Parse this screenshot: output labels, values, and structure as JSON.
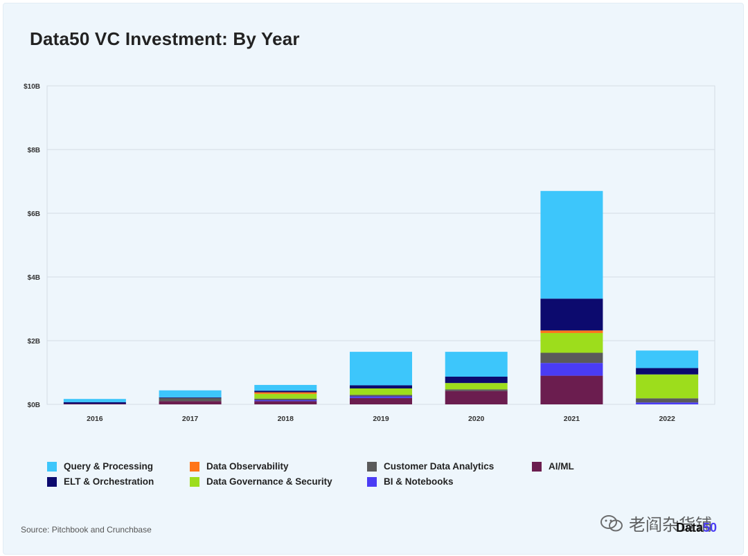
{
  "title": "Data50 VC Investment: By Year",
  "source": "Source: Pitchbook and Crunchbase",
  "watermark": "老阎杂货铺",
  "logo": {
    "text": "Data",
    "accent": "50"
  },
  "chart_data": {
    "type": "bar",
    "stacked": true,
    "title": "Data50 VC Investment: By Year",
    "xlabel": "",
    "ylabel": "",
    "ylim": [
      0,
      10
    ],
    "yunit": "$B",
    "yticks": [
      "$0B",
      "$2B",
      "$4B",
      "$6B",
      "$8B",
      "$10B"
    ],
    "ytick_values": [
      0,
      2,
      4,
      6,
      8,
      10
    ],
    "grid": true,
    "legend_position": "bottom",
    "categories": [
      "2016",
      "2017",
      "2018",
      "2019",
      "2020",
      "2021",
      "2022"
    ],
    "series": [
      {
        "name": "AI/ML",
        "color": "#6b1d4f",
        "values": [
          0.02,
          0.1,
          0.1,
          0.2,
          0.42,
          0.9,
          0.0
        ]
      },
      {
        "name": "BI & Notebooks",
        "color": "#4a3cf5",
        "values": [
          0.0,
          0.0,
          0.03,
          0.05,
          0.0,
          0.4,
          0.06
        ]
      },
      {
        "name": "Customer Data Analytics",
        "color": "#5a5a5a",
        "values": [
          0.0,
          0.1,
          0.05,
          0.05,
          0.05,
          0.32,
          0.13
        ]
      },
      {
        "name": "Data Governance & Security",
        "color": "#9ddd1c",
        "values": [
          0.0,
          0.0,
          0.15,
          0.2,
          0.2,
          0.62,
          0.75
        ]
      },
      {
        "name": "Data Observability",
        "color": "#ff7518",
        "values": [
          0.0,
          0.0,
          0.05,
          0.0,
          0.0,
          0.08,
          0.0
        ]
      },
      {
        "name": "ELT & Orchestration",
        "color": "#0c0a6e",
        "values": [
          0.05,
          0.02,
          0.05,
          0.1,
          0.2,
          1.0,
          0.2
        ]
      },
      {
        "name": "Query & Processing",
        "color": "#3dc6fb",
        "values": [
          0.1,
          0.22,
          0.18,
          1.05,
          0.78,
          3.38,
          0.55
        ]
      }
    ],
    "legend_order": [
      "Query & Processing",
      "Data Observability",
      "Customer Data Analytics",
      "AI/ML",
      "ELT & Orchestration",
      "Data Governance & Security",
      "BI & Notebooks"
    ]
  }
}
